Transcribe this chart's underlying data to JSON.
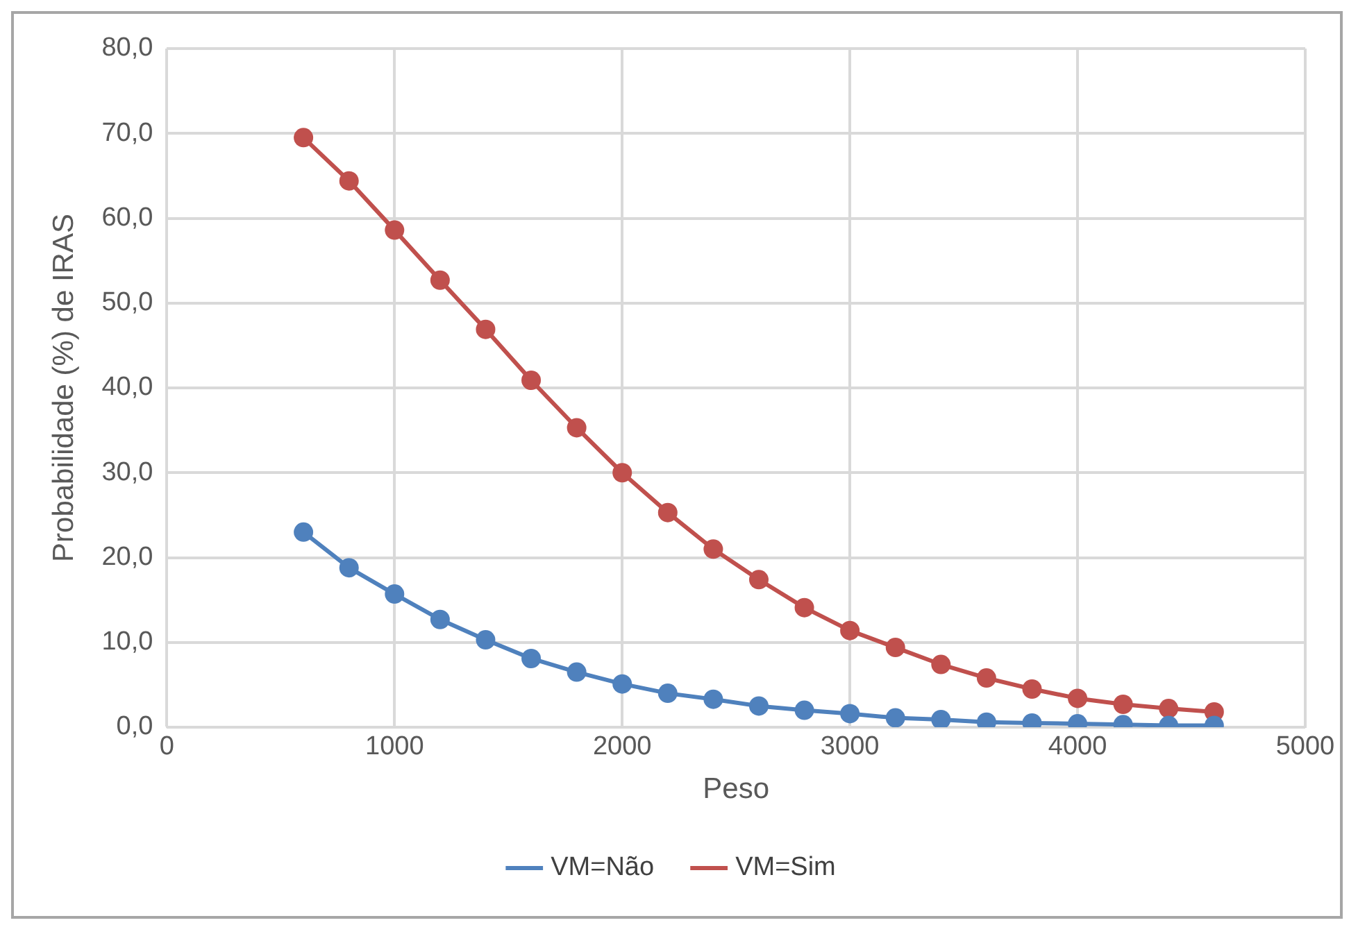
{
  "chart_data": {
    "type": "line",
    "xlabel": "Peso",
    "ylabel": "Probabilidade (%) de IRAS",
    "x": [
      600,
      800,
      1000,
      1200,
      1400,
      1600,
      1800,
      2000,
      2200,
      2400,
      2600,
      2800,
      3000,
      3200,
      3400,
      3600,
      3800,
      4000,
      4200,
      4400,
      4600
    ],
    "series": [
      {
        "name": "VM=Não",
        "color": "#4f81bd",
        "values": [
          23.0,
          18.8,
          15.7,
          12.7,
          10.3,
          8.1,
          6.5,
          5.1,
          4.0,
          3.3,
          2.5,
          2.0,
          1.6,
          1.1,
          0.9,
          0.6,
          0.5,
          0.4,
          0.3,
          0.2,
          0.2
        ]
      },
      {
        "name": "VM=Sim",
        "color": "#c0504d",
        "values": [
          69.5,
          64.4,
          58.6,
          52.7,
          46.9,
          40.9,
          35.3,
          30.0,
          25.3,
          21.0,
          17.4,
          14.1,
          11.4,
          9.4,
          7.4,
          5.8,
          4.5,
          3.4,
          2.7,
          2.2,
          1.8
        ]
      }
    ],
    "xlim": [
      0,
      5000
    ],
    "xticks": [
      0,
      1000,
      2000,
      3000,
      4000,
      5000
    ],
    "ylim": [
      0,
      80
    ],
    "yticks": [
      {
        "value": 0,
        "label": "0,0"
      },
      {
        "value": 10,
        "label": "10,0"
      },
      {
        "value": 20,
        "label": "20,0"
      },
      {
        "value": 30,
        "label": "30,0"
      },
      {
        "value": 40,
        "label": "40,0"
      },
      {
        "value": 50,
        "label": "50,0"
      },
      {
        "value": 60,
        "label": "60,0"
      },
      {
        "value": 70,
        "label": "70,0"
      },
      {
        "value": 80,
        "label": "80,0"
      }
    ],
    "grid": true,
    "legend": "bottom",
    "marker": "circle",
    "line_style": "solid"
  }
}
